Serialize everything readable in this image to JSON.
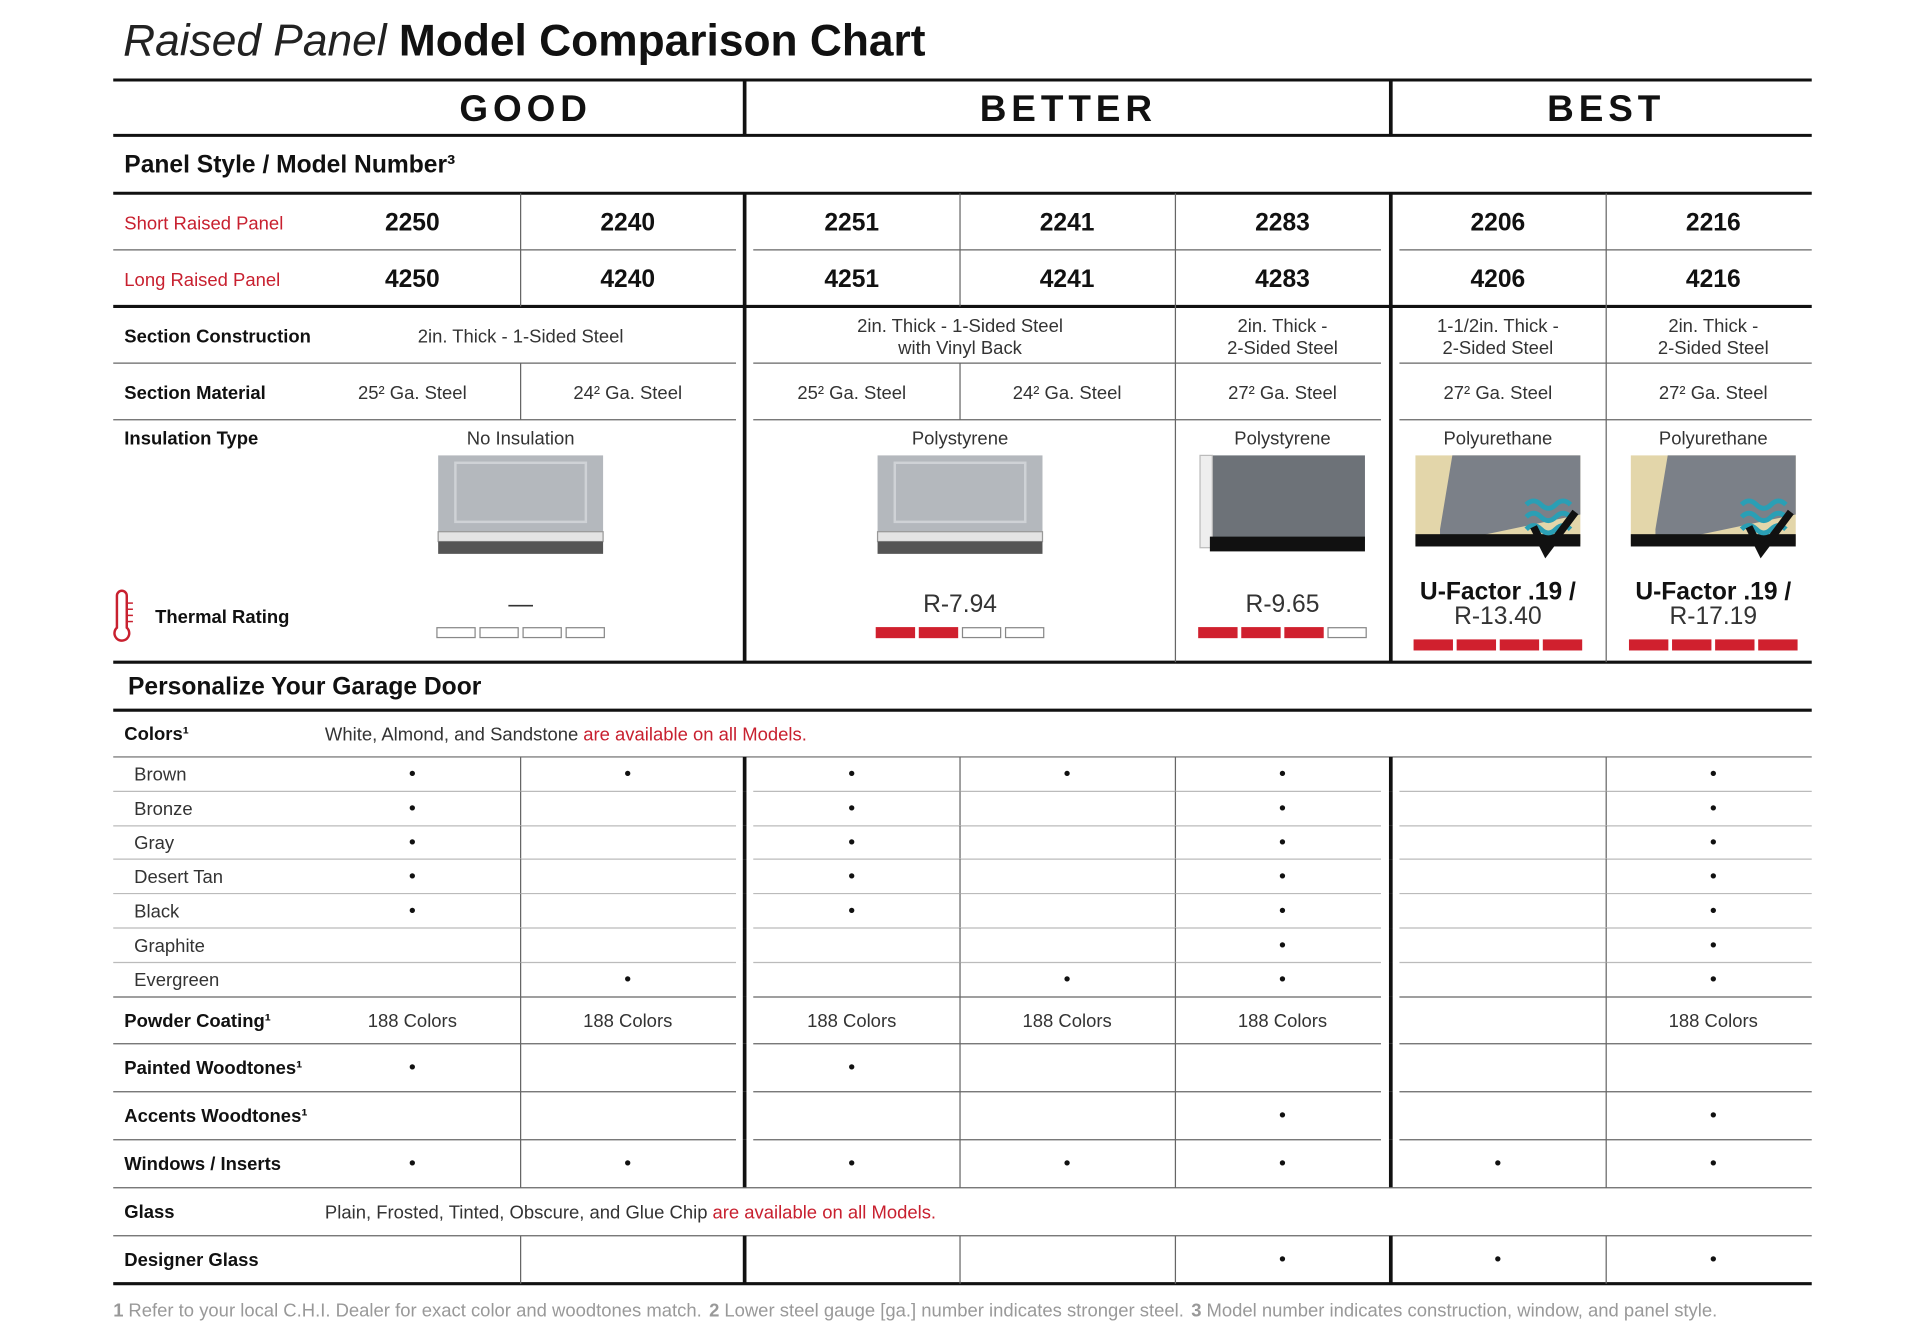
{
  "header": {
    "title_italic": "Raised Panel",
    "title_bold": "Model Comparison Chart"
  },
  "tiers": [
    "GOOD",
    "BETTER",
    "BEST"
  ],
  "panel_section": "Panel Style / Model Number³",
  "model_rows": [
    {
      "label": "Short Raised Panel",
      "models": [
        "2250",
        "2240",
        "2251",
        "2241",
        "2283",
        "2206",
        "2216"
      ]
    },
    {
      "label": "Long Raised Panel",
      "models": [
        "4250",
        "4240",
        "4251",
        "4241",
        "4283",
        "4206",
        "4216"
      ]
    }
  ],
  "construction": {
    "label": "Section Construction",
    "cells": [
      "2in. Thick - 1-Sided Steel",
      "2in. Thick - 1-Sided Steel\nwith Vinyl Back",
      "2in. Thick -\n2-Sided Steel",
      "1-1/2in. Thick -\n2-Sided Steel",
      "2in. Thick -\n2-Sided Steel"
    ]
  },
  "material": {
    "label": "Section Material",
    "cells": [
      "25² Ga. Steel",
      "24² Ga. Steel",
      "25² Ga. Steel",
      "24² Ga. Steel",
      "27² Ga. Steel",
      "27² Ga. Steel",
      "27² Ga. Steel"
    ]
  },
  "insulation": {
    "label": "Insulation Type",
    "cells": [
      "No Insulation",
      "Polystyrene",
      "Polystyrene",
      "Polyurethane",
      "Polyurethane"
    ]
  },
  "thermal": {
    "label": "Thermal Rating",
    "bar_max": 4,
    "cells": [
      {
        "rating": "—",
        "bars": 0
      },
      {
        "rating": "R-7.94",
        "bars": 2
      },
      {
        "rating": "R-9.65",
        "bars": 3
      },
      {
        "u_factor": "U-Factor .19 /",
        "rating": "R-13.40",
        "bars": 4
      },
      {
        "u_factor": "U-Factor .19 /",
        "rating": "R-17.19",
        "bars": 4
      }
    ]
  },
  "personalize": {
    "title": "Personalize Your Garage Door",
    "rows": [
      {
        "label": "Colors¹",
        "note": "White, Almond, and Sandstone",
        "note_highlight": "are available on all Models."
      },
      {
        "label": "Brown",
        "cells": [
          "•",
          "•",
          "•",
          "•",
          "•",
          null,
          "•"
        ]
      },
      {
        "label": "Bronze",
        "cells": [
          "•",
          null,
          "•",
          null,
          "•",
          null,
          "•"
        ]
      },
      {
        "label": "Gray",
        "cells": [
          "•",
          null,
          "•",
          null,
          "•",
          null,
          "•"
        ]
      },
      {
        "label": "Desert Tan",
        "cells": [
          "•",
          null,
          "•",
          null,
          "•",
          null,
          "•"
        ]
      },
      {
        "label": "Black",
        "cells": [
          "•",
          null,
          "•",
          null,
          "•",
          null,
          "•"
        ]
      },
      {
        "label": "Graphite",
        "cells": [
          null,
          null,
          null,
          null,
          "•",
          null,
          "•"
        ]
      },
      {
        "label": "Evergreen",
        "cells": [
          null,
          "•",
          null,
          "•",
          "•",
          null,
          "•"
        ]
      },
      {
        "label": "Powder Coating¹",
        "cells": [
          "188 Colors",
          "188 Colors",
          "188 Colors",
          "188 Colors",
          "188 Colors",
          null,
          "188 Colors"
        ]
      },
      {
        "label": "Painted Woodtones¹",
        "cells": [
          "•",
          null,
          "•",
          null,
          null,
          null,
          null
        ]
      },
      {
        "label": "Accents Woodtones¹",
        "cells": [
          null,
          null,
          null,
          null,
          "•",
          null,
          "•"
        ]
      },
      {
        "label": "Windows / Inserts",
        "cells": [
          "•",
          "•",
          "•",
          "•",
          "•",
          "•",
          "•"
        ]
      },
      {
        "label": "Glass",
        "note": "Plain, Frosted, Tinted, Obscure, and Glue Chip",
        "note_highlight": "are available on all Models."
      },
      {
        "label": "Designer Glass",
        "cells": [
          null,
          null,
          null,
          null,
          "•",
          "•",
          "•"
        ]
      }
    ]
  },
  "footnotes": [
    {
      "number": "1",
      "text": "Refer to your local C.H.I. Dealer for exact color and woodtones match."
    },
    {
      "number": "2",
      "text": "Lower steel gauge [ga.] number indicates stronger steel."
    },
    {
      "number": "3",
      "text": "Model number indicates construction, window, and panel style."
    }
  ]
}
